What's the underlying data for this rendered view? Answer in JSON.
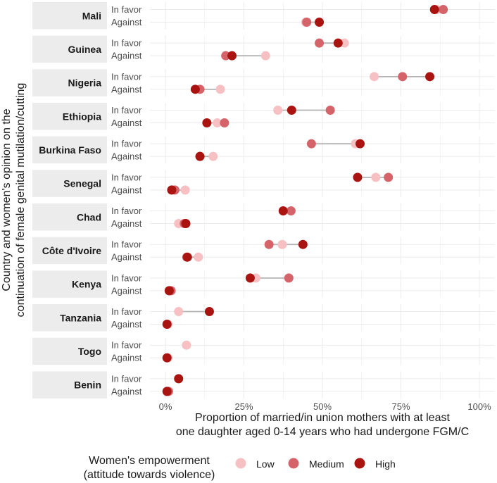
{
  "chart_data": {
    "type": "dot-range",
    "ylabel": "Country and women's opinion on the continuation of female genital mutilation/cutting",
    "ylabel_lines": [
      "Country and women's opinion on the",
      "continuation of female genital mutilation/cutting"
    ],
    "xlabel_lines": [
      "Proportion of married/in union mothers with at least",
      "one daughter aged 0-14 years who had undergone FGM/C"
    ],
    "xlim": [
      0,
      100
    ],
    "x_ticks": [
      0,
      25,
      50,
      75,
      100
    ],
    "x_tick_labels": [
      "0%",
      "25%",
      "50%",
      "75%",
      "100%"
    ],
    "opinions": [
      "In favor",
      "Against"
    ],
    "legend": {
      "title_lines": [
        "Women's empowerment",
        "(attitude towards violence)"
      ],
      "position": "bottom",
      "levels": [
        {
          "name": "Low",
          "color": "#f7c0c3"
        },
        {
          "name": "Medium",
          "color": "#d5646a"
        },
        {
          "name": "High",
          "color": "#a91410"
        }
      ]
    },
    "segment_color": "#b3b3b3",
    "strip_color": "#ececec",
    "grid_color": "#ebebeb",
    "countries": [
      {
        "name": "Mali",
        "rows": [
          {
            "opinion": "In favor",
            "Low": 86.5,
            "Medium": 88.5,
            "High": 85.7
          },
          {
            "opinion": "Against",
            "Low": 44.7,
            "Medium": 45.0,
            "High": 49.0
          }
        ]
      },
      {
        "name": "Guinea",
        "rows": [
          {
            "opinion": "In favor",
            "Low": 57.0,
            "Medium": 49.0,
            "High": 55.0
          },
          {
            "opinion": "Against",
            "Low": 31.9,
            "Medium": 19.2,
            "High": 21.2
          }
        ]
      },
      {
        "name": "Nigeria",
        "rows": [
          {
            "opinion": "In favor",
            "Low": 66.5,
            "Medium": 75.5,
            "High": 84.2
          },
          {
            "opinion": "Against",
            "Low": 17.5,
            "Medium": 11.0,
            "High": 9.5
          }
        ]
      },
      {
        "name": "Ethiopia",
        "rows": [
          {
            "opinion": "In favor",
            "Low": 35.8,
            "Medium": 52.5,
            "High": 40.2
          },
          {
            "opinion": "Against",
            "Low": 16.5,
            "Medium": 18.8,
            "High": 13.2
          }
        ]
      },
      {
        "name": "Burkina Faso",
        "rows": [
          {
            "opinion": "In favor",
            "Low": 60.5,
            "Medium": 46.5,
            "High": 62.0
          },
          {
            "opinion": "Against",
            "Low": 15.2,
            "Medium": 11.0,
            "High": 11.0
          }
        ]
      },
      {
        "name": "Senegal",
        "rows": [
          {
            "opinion": "In favor",
            "Low": 67.0,
            "Medium": 71.0,
            "High": 61.2
          },
          {
            "opinion": "Against",
            "Low": 6.3,
            "Medium": 3.0,
            "High": 2.0
          }
        ]
      },
      {
        "name": "Chad",
        "rows": [
          {
            "opinion": "In favor",
            "Low": 37.5,
            "Medium": 40.0,
            "High": 37.5
          },
          {
            "opinion": "Against",
            "Low": 4.2,
            "Medium": 6.0,
            "High": 6.5
          }
        ]
      },
      {
        "name": "Côte d'Ivoire",
        "rows": [
          {
            "opinion": "In favor",
            "Low": 37.2,
            "Medium": 33.0,
            "High": 43.8
          },
          {
            "opinion": "Against",
            "Low": 10.5,
            "Medium": 6.8,
            "High": 7.0
          }
        ]
      },
      {
        "name": "Kenya",
        "rows": [
          {
            "opinion": "In favor",
            "Low": 28.8,
            "Medium": 39.3,
            "High": 27.0
          },
          {
            "opinion": "Against",
            "Low": 1.2,
            "Medium": 1.8,
            "High": 1.2
          }
        ]
      },
      {
        "name": "Tanzania",
        "rows": [
          {
            "opinion": "In favor",
            "Low": 4.2,
            "Medium": null,
            "High": 14.0
          },
          {
            "opinion": "Against",
            "Low": 0.8,
            "Medium": null,
            "High": 0.5
          }
        ]
      },
      {
        "name": "Togo",
        "rows": [
          {
            "opinion": "In favor",
            "Low": 6.7,
            "Medium": null,
            "High": null
          },
          {
            "opinion": "Against",
            "Low": 0.8,
            "Medium": null,
            "High": 0.5
          }
        ]
      },
      {
        "name": "Benin",
        "rows": [
          {
            "opinion": "In favor",
            "Low": null,
            "Medium": null,
            "High": 4.2
          },
          {
            "opinion": "Against",
            "Low": 0.8,
            "Medium": 1.0,
            "High": 0.5
          }
        ]
      }
    ]
  }
}
